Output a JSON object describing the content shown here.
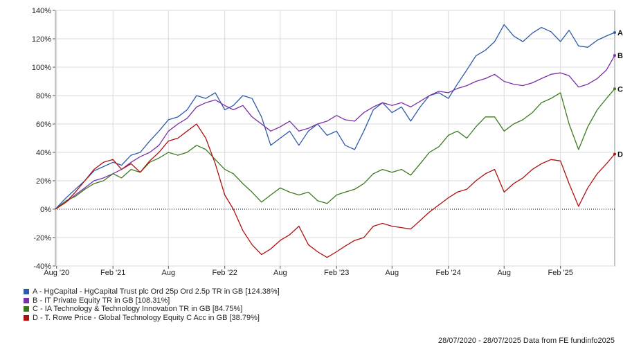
{
  "chart_data": {
    "type": "line",
    "ylim": [
      -40,
      140
    ],
    "yticks": [
      -40,
      -20,
      0,
      20,
      40,
      60,
      80,
      100,
      120,
      140
    ],
    "ytick_labels": [
      "-40%",
      "-20%",
      "0%",
      "20%",
      "40%",
      "60%",
      "80%",
      "100%",
      "120%",
      "140%"
    ],
    "x_range": [
      "2020-07-28",
      "2025-07-28"
    ],
    "xticks": [
      {
        "date": "2020-08-01",
        "label": "Aug '20"
      },
      {
        "date": "2021-02-01",
        "label": "Feb '21"
      },
      {
        "date": "2021-08-01",
        "label": "Aug"
      },
      {
        "date": "2022-02-01",
        "label": "Feb '22"
      },
      {
        "date": "2022-08-01",
        "label": "Aug"
      },
      {
        "date": "2023-02-01",
        "label": "Feb '23"
      },
      {
        "date": "2023-08-01",
        "label": "Aug"
      },
      {
        "date": "2024-02-01",
        "label": "Feb '24"
      },
      {
        "date": "2024-08-01",
        "label": "Aug"
      },
      {
        "date": "2025-02-01",
        "label": "Feb '25"
      }
    ],
    "grid": true,
    "legend_position": "bottom-left",
    "series": [
      {
        "letter": "A",
        "name": "A - HgCapital - HgCapital Trust plc Ord 25p Ord 2.5p TR in GB [124.38%]",
        "color": "#2e5aa8",
        "points": [
          [
            "2020-07-28",
            0
          ],
          [
            "2020-09-01",
            8
          ],
          [
            "2020-10-01",
            14
          ],
          [
            "2020-11-01",
            20
          ],
          [
            "2020-12-01",
            27
          ],
          [
            "2021-01-01",
            30
          ],
          [
            "2021-02-01",
            33
          ],
          [
            "2021-03-01",
            31
          ],
          [
            "2021-04-01",
            38
          ],
          [
            "2021-05-01",
            40
          ],
          [
            "2021-06-01",
            48
          ],
          [
            "2021-07-01",
            55
          ],
          [
            "2021-08-01",
            63
          ],
          [
            "2021-09-01",
            65
          ],
          [
            "2021-10-01",
            70
          ],
          [
            "2021-11-01",
            80
          ],
          [
            "2021-12-01",
            78
          ],
          [
            "2022-01-01",
            82
          ],
          [
            "2022-02-01",
            70
          ],
          [
            "2022-03-01",
            73
          ],
          [
            "2022-04-01",
            80
          ],
          [
            "2022-05-01",
            78
          ],
          [
            "2022-06-01",
            65
          ],
          [
            "2022-07-01",
            45
          ],
          [
            "2022-08-01",
            50
          ],
          [
            "2022-09-01",
            55
          ],
          [
            "2022-10-01",
            45
          ],
          [
            "2022-11-01",
            55
          ],
          [
            "2022-12-01",
            60
          ],
          [
            "2023-01-01",
            52
          ],
          [
            "2023-02-01",
            55
          ],
          [
            "2023-03-01",
            45
          ],
          [
            "2023-04-01",
            42
          ],
          [
            "2023-05-01",
            55
          ],
          [
            "2023-06-01",
            70
          ],
          [
            "2023-07-01",
            75
          ],
          [
            "2023-08-01",
            68
          ],
          [
            "2023-09-01",
            72
          ],
          [
            "2023-10-01",
            62
          ],
          [
            "2023-11-01",
            72
          ],
          [
            "2023-12-01",
            80
          ],
          [
            "2024-01-01",
            82
          ],
          [
            "2024-02-01",
            78
          ],
          [
            "2024-03-01",
            88
          ],
          [
            "2024-04-01",
            98
          ],
          [
            "2024-05-01",
            108
          ],
          [
            "2024-06-01",
            112
          ],
          [
            "2024-07-01",
            118
          ],
          [
            "2024-08-01",
            130
          ],
          [
            "2024-09-01",
            122
          ],
          [
            "2024-10-01",
            118
          ],
          [
            "2024-11-01",
            124
          ],
          [
            "2024-12-01",
            128
          ],
          [
            "2025-01-01",
            125
          ],
          [
            "2025-02-01",
            118
          ],
          [
            "2025-03-01",
            126
          ],
          [
            "2025-04-01",
            115
          ],
          [
            "2025-05-01",
            114
          ],
          [
            "2025-06-01",
            119
          ],
          [
            "2025-07-01",
            122
          ],
          [
            "2025-07-28",
            124.38
          ]
        ]
      },
      {
        "letter": "B",
        "name": "B - IT Private Equity TR in GB [108.31%]",
        "color": "#7b2fa8",
        "points": [
          [
            "2020-07-28",
            0
          ],
          [
            "2020-09-01",
            5
          ],
          [
            "2020-10-01",
            10
          ],
          [
            "2020-11-01",
            15
          ],
          [
            "2020-12-01",
            20
          ],
          [
            "2021-01-01",
            22
          ],
          [
            "2021-02-01",
            25
          ],
          [
            "2021-03-01",
            28
          ],
          [
            "2021-04-01",
            33
          ],
          [
            "2021-05-01",
            37
          ],
          [
            "2021-06-01",
            40
          ],
          [
            "2021-07-01",
            45
          ],
          [
            "2021-08-01",
            55
          ],
          [
            "2021-09-01",
            60
          ],
          [
            "2021-10-01",
            64
          ],
          [
            "2021-11-01",
            72
          ],
          [
            "2021-12-01",
            75
          ],
          [
            "2022-01-01",
            77
          ],
          [
            "2022-02-01",
            73
          ],
          [
            "2022-03-01",
            70
          ],
          [
            "2022-04-01",
            73
          ],
          [
            "2022-05-01",
            65
          ],
          [
            "2022-06-01",
            60
          ],
          [
            "2022-07-01",
            55
          ],
          [
            "2022-08-01",
            58
          ],
          [
            "2022-09-01",
            62
          ],
          [
            "2022-10-01",
            55
          ],
          [
            "2022-11-01",
            57
          ],
          [
            "2022-12-01",
            60
          ],
          [
            "2023-01-01",
            62
          ],
          [
            "2023-02-01",
            66
          ],
          [
            "2023-03-01",
            63
          ],
          [
            "2023-04-01",
            62
          ],
          [
            "2023-05-01",
            68
          ],
          [
            "2023-06-01",
            72
          ],
          [
            "2023-07-01",
            75
          ],
          [
            "2023-08-01",
            73
          ],
          [
            "2023-09-01",
            75
          ],
          [
            "2023-10-01",
            72
          ],
          [
            "2023-11-01",
            76
          ],
          [
            "2023-12-01",
            80
          ],
          [
            "2024-01-01",
            83
          ],
          [
            "2024-02-01",
            82
          ],
          [
            "2024-03-01",
            85
          ],
          [
            "2024-04-01",
            87
          ],
          [
            "2024-05-01",
            90
          ],
          [
            "2024-06-01",
            92
          ],
          [
            "2024-07-01",
            95
          ],
          [
            "2024-08-01",
            90
          ],
          [
            "2024-09-01",
            88
          ],
          [
            "2024-10-01",
            87
          ],
          [
            "2024-11-01",
            89
          ],
          [
            "2024-12-01",
            92
          ],
          [
            "2025-01-01",
            95
          ],
          [
            "2025-02-01",
            96
          ],
          [
            "2025-03-01",
            94
          ],
          [
            "2025-04-01",
            86
          ],
          [
            "2025-05-01",
            88
          ],
          [
            "2025-06-01",
            92
          ],
          [
            "2025-07-01",
            98
          ],
          [
            "2025-07-28",
            108.31
          ]
        ]
      },
      {
        "letter": "C",
        "name": "C - IA Technology & Technology Innovation TR in GB [84.75%]",
        "color": "#3c7a1c",
        "points": [
          [
            "2020-07-28",
            0
          ],
          [
            "2020-09-01",
            6
          ],
          [
            "2020-10-01",
            9
          ],
          [
            "2020-11-01",
            14
          ],
          [
            "2020-12-01",
            18
          ],
          [
            "2021-01-01",
            20
          ],
          [
            "2021-02-01",
            25
          ],
          [
            "2021-03-01",
            22
          ],
          [
            "2021-04-01",
            28
          ],
          [
            "2021-05-01",
            26
          ],
          [
            "2021-06-01",
            33
          ],
          [
            "2021-07-01",
            36
          ],
          [
            "2021-08-01",
            40
          ],
          [
            "2021-09-01",
            38
          ],
          [
            "2021-10-01",
            40
          ],
          [
            "2021-11-01",
            45
          ],
          [
            "2021-12-01",
            42
          ],
          [
            "2022-01-01",
            35
          ],
          [
            "2022-02-01",
            28
          ],
          [
            "2022-03-01",
            25
          ],
          [
            "2022-04-01",
            18
          ],
          [
            "2022-05-01",
            12
          ],
          [
            "2022-06-01",
            5
          ],
          [
            "2022-07-01",
            10
          ],
          [
            "2022-08-01",
            15
          ],
          [
            "2022-09-01",
            12
          ],
          [
            "2022-10-01",
            10
          ],
          [
            "2022-11-01",
            12
          ],
          [
            "2022-12-01",
            6
          ],
          [
            "2023-01-01",
            4
          ],
          [
            "2023-02-01",
            10
          ],
          [
            "2023-03-01",
            12
          ],
          [
            "2023-04-01",
            14
          ],
          [
            "2023-05-01",
            18
          ],
          [
            "2023-06-01",
            25
          ],
          [
            "2023-07-01",
            28
          ],
          [
            "2023-08-01",
            26
          ],
          [
            "2023-09-01",
            28
          ],
          [
            "2023-10-01",
            24
          ],
          [
            "2023-11-01",
            32
          ],
          [
            "2023-12-01",
            40
          ],
          [
            "2024-01-01",
            44
          ],
          [
            "2024-02-01",
            52
          ],
          [
            "2024-03-01",
            55
          ],
          [
            "2024-04-01",
            50
          ],
          [
            "2024-05-01",
            58
          ],
          [
            "2024-06-01",
            65
          ],
          [
            "2024-07-01",
            65
          ],
          [
            "2024-08-01",
            55
          ],
          [
            "2024-09-01",
            60
          ],
          [
            "2024-10-01",
            63
          ],
          [
            "2024-11-01",
            68
          ],
          [
            "2024-12-01",
            75
          ],
          [
            "2025-01-01",
            78
          ],
          [
            "2025-02-01",
            82
          ],
          [
            "2025-03-01",
            60
          ],
          [
            "2025-04-01",
            42
          ],
          [
            "2025-05-01",
            58
          ],
          [
            "2025-06-01",
            70
          ],
          [
            "2025-07-01",
            78
          ],
          [
            "2025-07-28",
            84.75
          ]
        ]
      },
      {
        "letter": "D",
        "name": "D - T. Rowe Price - Global Technology Equity C Acc in GB [38.79%]",
        "color": "#b01010",
        "points": [
          [
            "2020-07-28",
            0
          ],
          [
            "2020-09-01",
            5
          ],
          [
            "2020-10-01",
            12
          ],
          [
            "2020-11-01",
            20
          ],
          [
            "2020-12-01",
            28
          ],
          [
            "2021-01-01",
            33
          ],
          [
            "2021-02-01",
            35
          ],
          [
            "2021-03-01",
            28
          ],
          [
            "2021-04-01",
            32
          ],
          [
            "2021-05-01",
            26
          ],
          [
            "2021-06-01",
            34
          ],
          [
            "2021-07-01",
            40
          ],
          [
            "2021-08-01",
            48
          ],
          [
            "2021-09-01",
            50
          ],
          [
            "2021-10-01",
            55
          ],
          [
            "2021-11-01",
            60
          ],
          [
            "2021-12-01",
            50
          ],
          [
            "2022-01-01",
            32
          ],
          [
            "2022-02-01",
            10
          ],
          [
            "2022-03-01",
            0
          ],
          [
            "2022-04-01",
            -15
          ],
          [
            "2022-05-01",
            -25
          ],
          [
            "2022-06-01",
            -32
          ],
          [
            "2022-07-01",
            -28
          ],
          [
            "2022-08-01",
            -22
          ],
          [
            "2022-09-01",
            -18
          ],
          [
            "2022-10-01",
            -12
          ],
          [
            "2022-11-01",
            -25
          ],
          [
            "2022-12-01",
            -30
          ],
          [
            "2023-01-01",
            -34
          ],
          [
            "2023-02-01",
            -30
          ],
          [
            "2023-03-01",
            -26
          ],
          [
            "2023-04-01",
            -22
          ],
          [
            "2023-05-01",
            -20
          ],
          [
            "2023-06-01",
            -12
          ],
          [
            "2023-07-01",
            -10
          ],
          [
            "2023-08-01",
            -12
          ],
          [
            "2023-09-01",
            -13
          ],
          [
            "2023-10-01",
            -14
          ],
          [
            "2023-11-01",
            -8
          ],
          [
            "2023-12-01",
            -2
          ],
          [
            "2024-01-01",
            3
          ],
          [
            "2024-02-01",
            8
          ],
          [
            "2024-03-01",
            12
          ],
          [
            "2024-04-01",
            14
          ],
          [
            "2024-05-01",
            20
          ],
          [
            "2024-06-01",
            25
          ],
          [
            "2024-07-01",
            28
          ],
          [
            "2024-08-01",
            12
          ],
          [
            "2024-09-01",
            18
          ],
          [
            "2024-10-01",
            22
          ],
          [
            "2024-11-01",
            28
          ],
          [
            "2024-12-01",
            32
          ],
          [
            "2025-01-01",
            35
          ],
          [
            "2025-02-01",
            34
          ],
          [
            "2025-03-01",
            18
          ],
          [
            "2025-04-01",
            2
          ],
          [
            "2025-05-01",
            15
          ],
          [
            "2025-06-01",
            25
          ],
          [
            "2025-07-01",
            32
          ],
          [
            "2025-07-28",
            38.79
          ]
        ]
      }
    ]
  },
  "footer": {
    "text": "28/07/2020 - 28/07/2025 Data from FE fundinfo2025"
  }
}
